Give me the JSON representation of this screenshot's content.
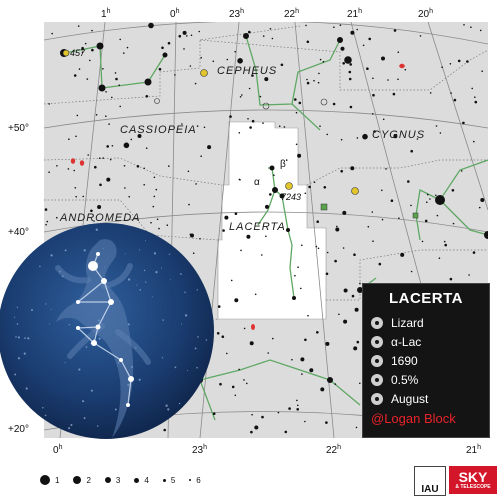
{
  "constellation": {
    "name": "LACERTA",
    "meaning": "Lizard",
    "brightest_star": "α-Lac",
    "year_introduced": "1690",
    "sky_area": "0.5%",
    "best_month": "August",
    "credit": "@Logan Block"
  },
  "labels": {
    "ra_top": [
      {
        "h": "1",
        "u": "h"
      },
      {
        "h": "0",
        "u": "h"
      },
      {
        "h": "23",
        "u": "h"
      },
      {
        "h": "22",
        "u": "h"
      },
      {
        "h": "21",
        "u": "h"
      },
      {
        "h": "20",
        "u": "h"
      }
    ],
    "ra_bottom": [
      {
        "h": "0",
        "u": "h"
      },
      {
        "h": "23",
        "u": "h"
      },
      {
        "h": "22",
        "u": "h"
      },
      {
        "h": "21",
        "u": "h"
      }
    ],
    "dec_left": [
      "+50°",
      "+40°",
      "+20°"
    ],
    "constellations": [
      "CEPHEUS",
      "CASSIOPEIA",
      "CYGNUS",
      "ANDROMEDA",
      "LACERTA"
    ],
    "objects": [
      "457",
      "7243",
      "β",
      "α"
    ]
  },
  "legend": {
    "magnitudes": [
      "1",
      "2",
      "3",
      "4",
      "5",
      "6"
    ]
  },
  "logos": {
    "iau": "IAU",
    "sky": "SKY",
    "sky_sub": "& TELESCOPE"
  },
  "colors": {
    "sky_background": "#dcdcdc",
    "constellation_region": "#ffffff",
    "stick_lines": "#5fa864",
    "boundary_lines": "#888888",
    "infobox_bg": "#141414",
    "credit_red": "#e8232a",
    "globe_blue": "#1b3e73"
  }
}
